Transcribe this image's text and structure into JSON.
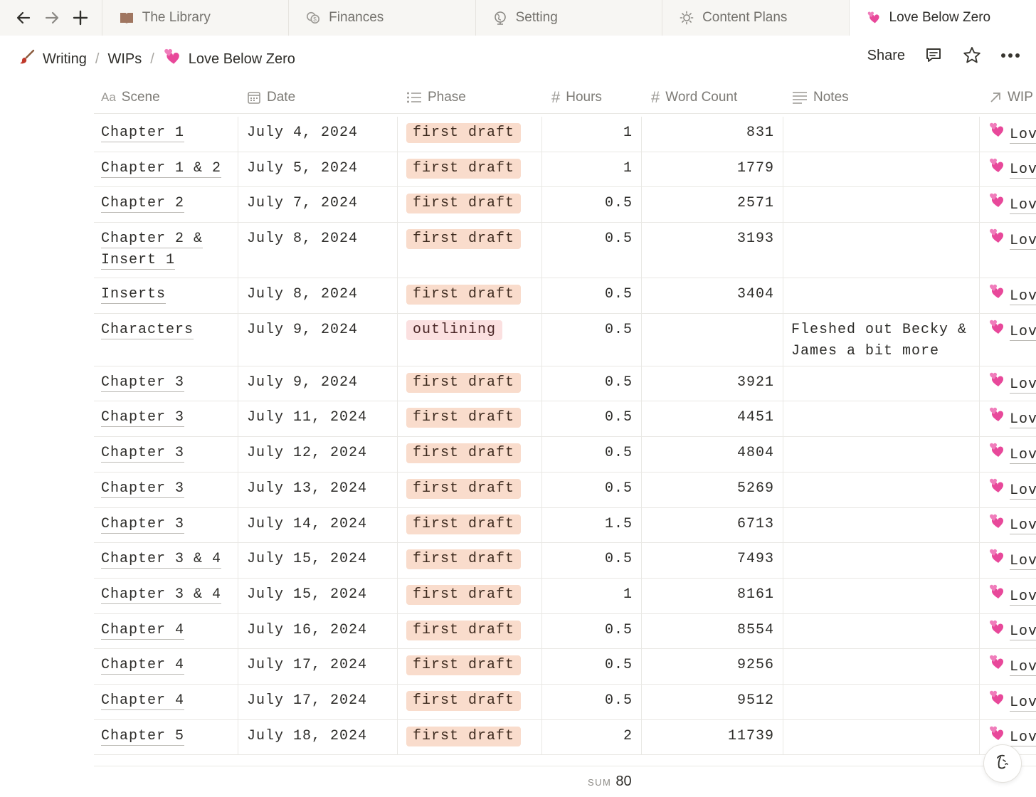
{
  "tabs": [
    {
      "label": "The Library",
      "icon": "book-icon"
    },
    {
      "label": "Finances",
      "icon": "coins-icon"
    },
    {
      "label": "Setting",
      "icon": "globe-icon"
    },
    {
      "label": "Content Plans",
      "icon": "sun-icon"
    },
    {
      "label": "Love Below Zero",
      "icon": "two-hearts-icon",
      "active": true
    }
  ],
  "breadcrumb": {
    "items": [
      "Writing",
      "WIPs",
      "Love Below Zero"
    ],
    "separator": "/",
    "icons": [
      "paintbrush-icon",
      "",
      "two-hearts-icon"
    ]
  },
  "header_actions": {
    "share_label": "Share"
  },
  "columns": [
    {
      "label": "Scene",
      "icon_text": "Aa"
    },
    {
      "label": "Date",
      "icon": "calendar-icon"
    },
    {
      "label": "Phase",
      "icon": "list-icon"
    },
    {
      "label": "Hours",
      "icon_text": "#"
    },
    {
      "label": "Word Count",
      "icon_text": "#"
    },
    {
      "label": "Notes",
      "icon": "text-lines-icon"
    },
    {
      "label": "WIP",
      "icon": "relation-arrow-icon"
    }
  ],
  "rows": [
    {
      "scene": "Chapter 1",
      "date": "July 4, 2024",
      "phase": "first draft",
      "hours": "1",
      "words": "831",
      "notes": "",
      "wip": "Lov"
    },
    {
      "scene": "Chapter 1 & 2",
      "date": "July 5, 2024",
      "phase": "first draft",
      "hours": "1",
      "words": "1779",
      "notes": "",
      "wip": "Lov"
    },
    {
      "scene": "Chapter 2",
      "date": "July 7, 2024",
      "phase": "first draft",
      "hours": "0.5",
      "words": "2571",
      "notes": "",
      "wip": "Lov"
    },
    {
      "scene": "Chapter 2 & Insert 1",
      "date": "July 8, 2024",
      "phase": "first draft",
      "hours": "0.5",
      "words": "3193",
      "notes": "",
      "wip": "Lov"
    },
    {
      "scene": "Inserts",
      "date": "July 8, 2024",
      "phase": "first draft",
      "hours": "0.5",
      "words": "3404",
      "notes": "",
      "wip": "Lov"
    },
    {
      "scene": "Characters",
      "date": "July 9, 2024",
      "phase": "outlining",
      "hours": "0.5",
      "words": "",
      "notes": "Fleshed out Becky & James a bit more",
      "wip": "Lov"
    },
    {
      "scene": "Chapter 3",
      "date": "July 9, 2024",
      "phase": "first draft",
      "hours": "0.5",
      "words": "3921",
      "notes": "",
      "wip": "Lov"
    },
    {
      "scene": "Chapter 3",
      "date": "July 11, 2024",
      "phase": "first draft",
      "hours": "0.5",
      "words": "4451",
      "notes": "",
      "wip": "Lov"
    },
    {
      "scene": "Chapter 3",
      "date": "July 12, 2024",
      "phase": "first draft",
      "hours": "0.5",
      "words": "4804",
      "notes": "",
      "wip": "Lov"
    },
    {
      "scene": "Chapter 3",
      "date": "July 13, 2024",
      "phase": "first draft",
      "hours": "0.5",
      "words": "5269",
      "notes": "",
      "wip": "Lov"
    },
    {
      "scene": "Chapter 3",
      "date": "July 14, 2024",
      "phase": "first draft",
      "hours": "1.5",
      "words": "6713",
      "notes": "",
      "wip": "Lov"
    },
    {
      "scene": "Chapter 3 & 4",
      "date": "July 15, 2024",
      "phase": "first draft",
      "hours": "0.5",
      "words": "7493",
      "notes": "",
      "wip": "Lov"
    },
    {
      "scene": "Chapter 3 & 4",
      "date": "July 15, 2024",
      "phase": "first draft",
      "hours": "1",
      "words": "8161",
      "notes": "",
      "wip": "Lov"
    },
    {
      "scene": "Chapter 4",
      "date": "July 16, 2024",
      "phase": "first draft",
      "hours": "0.5",
      "words": "8554",
      "notes": "",
      "wip": "Lov"
    },
    {
      "scene": "Chapter 4",
      "date": "July 17, 2024",
      "phase": "first draft",
      "hours": "0.5",
      "words": "9256",
      "notes": "",
      "wip": "Lov"
    },
    {
      "scene": "Chapter 4",
      "date": "July 17, 2024",
      "phase": "first draft",
      "hours": "0.5",
      "words": "9512",
      "notes": "",
      "wip": "Lov"
    },
    {
      "scene": "Chapter 5",
      "date": "July 18, 2024",
      "phase": "first draft",
      "hours": "2",
      "words": "11739",
      "notes": "",
      "wip": "Lov"
    }
  ],
  "footer": {
    "sum_label": "SUM",
    "sum_value": "80"
  },
  "colors": {
    "first_draft_pill": "#f9dccc",
    "outlining_pill": "#fbe0e0",
    "tab_strip": "#f7f6f3"
  }
}
